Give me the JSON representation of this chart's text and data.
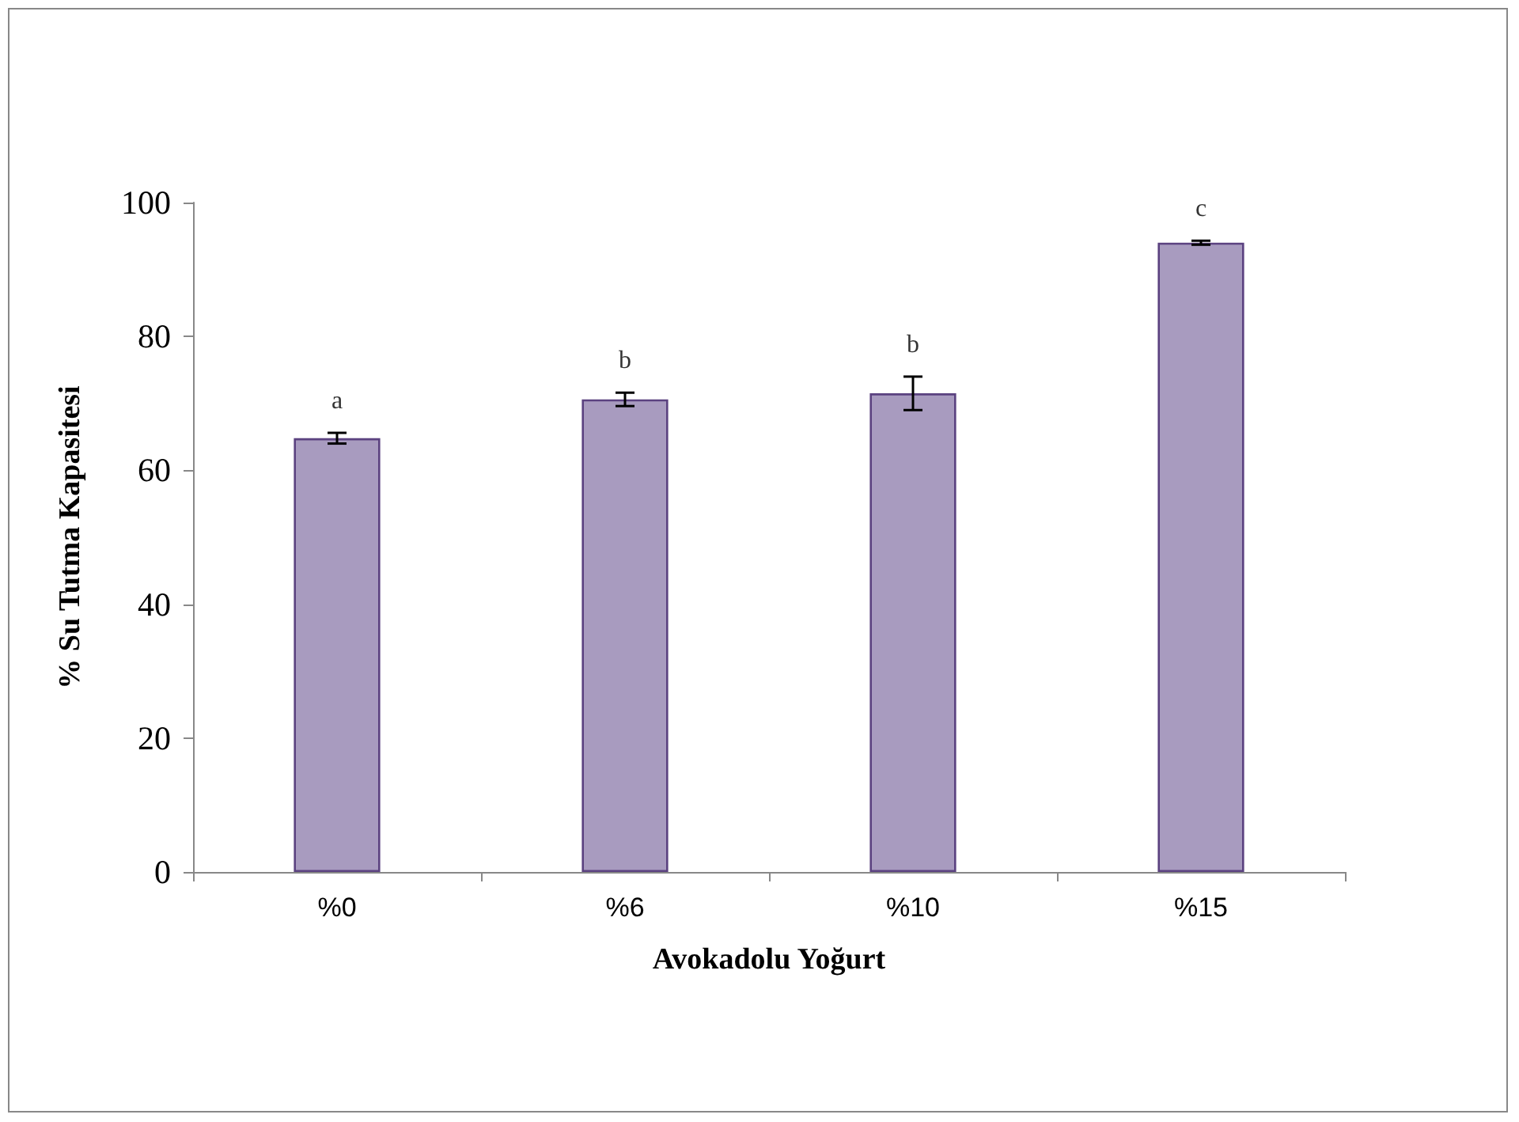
{
  "chart_data": {
    "type": "bar",
    "xlabel": "Avokadolu Yoğurt",
    "ylabel": "% Su Tutma Kapasitesi",
    "categories": [
      "%0",
      "%6",
      "%10",
      "%15"
    ],
    "values": [
      64.8,
      70.6,
      71.5,
      94.0
    ],
    "errors": [
      0.8,
      1.0,
      2.5,
      0.3
    ],
    "color": "#a89bbf",
    "ylim": [
      0,
      100
    ],
    "yticks": [
      0,
      20,
      40,
      60,
      80,
      100
    ],
    "grid": false,
    "annotations": [
      "a",
      "b",
      "b",
      "c"
    ]
  }
}
